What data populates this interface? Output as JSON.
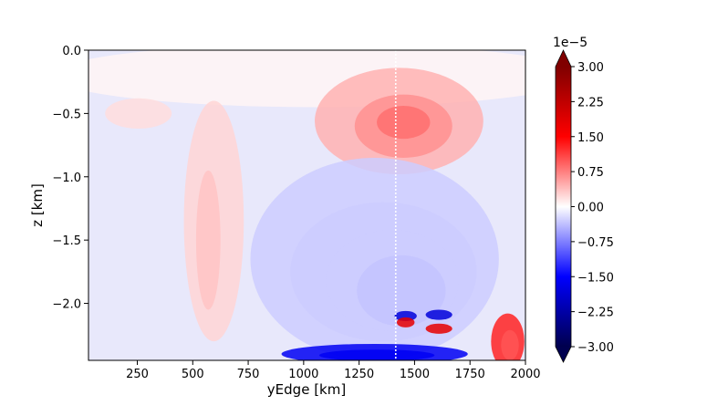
{
  "chart_data": {
    "type": "heatmap",
    "title": "",
    "xlabel": "yEdge [km]",
    "ylabel": "z [km]",
    "xlim": [
      30,
      2000
    ],
    "ylim": [
      -2.45,
      0.0
    ],
    "x_ticks": [
      {
        "value": 250,
        "label": "250"
      },
      {
        "value": 500,
        "label": "500"
      },
      {
        "value": 750,
        "label": "750"
      },
      {
        "value": 1000,
        "label": "1000"
      },
      {
        "value": 1250,
        "label": "1250"
      },
      {
        "value": 1500,
        "label": "1500"
      },
      {
        "value": 1750,
        "label": "1750"
      },
      {
        "value": 2000,
        "label": "2000"
      }
    ],
    "y_ticks": [
      {
        "value": 0.0,
        "label": "0.0"
      },
      {
        "value": -0.5,
        "label": "−0.5"
      },
      {
        "value": -1.0,
        "label": "−1.0"
      },
      {
        "value": -1.5,
        "label": "−1.5"
      },
      {
        "value": -2.0,
        "label": "−2.0"
      }
    ],
    "vertical_line_x": 1415,
    "colorbar": {
      "multiplier_label": "1e−5",
      "range": [
        -3.0,
        3.0
      ],
      "extend": "both",
      "colormap": "seismic",
      "ticks": [
        {
          "value": 3.0,
          "label": "3.00"
        },
        {
          "value": 2.25,
          "label": "2.25"
        },
        {
          "value": 1.5,
          "label": "1.50"
        },
        {
          "value": 0.75,
          "label": "0.75"
        },
        {
          "value": 0.0,
          "label": "0.00"
        },
        {
          "value": -0.75,
          "label": "−0.75"
        },
        {
          "value": -1.5,
          "label": "−1.50"
        },
        {
          "value": -2.25,
          "label": "−2.25"
        },
        {
          "value": -3.0,
          "label": "−3.00"
        }
      ]
    },
    "features": [
      {
        "cx": 1060,
        "cy": -0.2,
        "rx": 1200,
        "ry": 0.25,
        "value": 0.06
      },
      {
        "cx": 1430,
        "cy": -0.56,
        "rx": 380,
        "ry": 0.42,
        "value": 0.45
      },
      {
        "cx": 1450,
        "cy": -0.6,
        "rx": 220,
        "ry": 0.25,
        "value": 0.65
      },
      {
        "cx": 1450,
        "cy": -0.57,
        "rx": 120,
        "ry": 0.13,
        "value": 0.85
      },
      {
        "cx": 595,
        "cy": -1.35,
        "rx": 135,
        "ry": 0.95,
        "value": 0.25
      },
      {
        "cx": 570,
        "cy": -1.5,
        "rx": 55,
        "ry": 0.55,
        "value": 0.35
      },
      {
        "cx": 255,
        "cy": -0.5,
        "rx": 150,
        "ry": 0.12,
        "value": 0.2
      },
      {
        "cx": 1920,
        "cy": -2.3,
        "rx": 75,
        "ry": 0.22,
        "value": 1.3
      },
      {
        "cx": 1930,
        "cy": -2.33,
        "rx": 40,
        "ry": 0.12,
        "value": 1.0
      },
      {
        "cx": 1320,
        "cy": -1.65,
        "rx": 560,
        "ry": 0.8,
        "value": -0.3
      },
      {
        "cx": 1360,
        "cy": -1.75,
        "rx": 420,
        "ry": 0.55,
        "value": -0.3
      },
      {
        "cx": 1400,
        "cy": -1.82,
        "rx": 300,
        "ry": 0.4,
        "value": -0.3
      },
      {
        "cx": 1440,
        "cy": -1.9,
        "rx": 200,
        "ry": 0.28,
        "value": -0.35
      },
      {
        "cx": 1320,
        "cy": -2.4,
        "rx": 420,
        "ry": 0.08,
        "value": -1.6
      },
      {
        "cx": 1330,
        "cy": -2.41,
        "rx": 260,
        "ry": 0.045,
        "value": -1.6
      },
      {
        "cx": 1460,
        "cy": -2.1,
        "rx": 50,
        "ry": 0.04,
        "value": -1.8
      },
      {
        "cx": 1610,
        "cy": -2.09,
        "rx": 60,
        "ry": 0.04,
        "value": -1.8
      },
      {
        "cx": 1460,
        "cy": -2.15,
        "rx": 40,
        "ry": 0.04,
        "value": 1.8
      },
      {
        "cx": 1610,
        "cy": -2.2,
        "rx": 60,
        "ry": 0.04,
        "value": 1.8
      }
    ]
  }
}
